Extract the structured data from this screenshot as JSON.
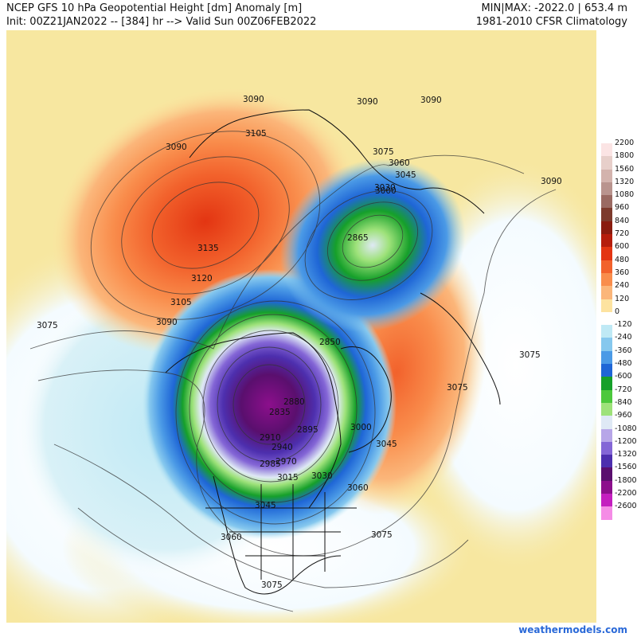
{
  "header": {
    "title": "NCEP GFS 10 hPa Geopotential Height [dm] Anomaly [m]",
    "init": "Init: 00Z21JAN2022 -- [384] hr --> Valid Sun 00Z06FEB2022",
    "minmax": "MIN|MAX: -2022.0 | 653.4 m",
    "climatology": "1981-2010 CFSR Climatology"
  },
  "legend": {
    "levels": [
      {
        "label": "2200",
        "color": "#fbe4e4"
      },
      {
        "label": "1800",
        "color": "#e7cfca"
      },
      {
        "label": "1560",
        "color": "#d3b3ad"
      },
      {
        "label": "1320",
        "color": "#b9948e"
      },
      {
        "label": "1080",
        "color": "#9a6a62"
      },
      {
        "label": "960",
        "color": "#7d3a2c"
      },
      {
        "label": "840",
        "color": "#8a1c0f"
      },
      {
        "label": "720",
        "color": "#b51d0c"
      },
      {
        "label": "600",
        "color": "#e33512"
      },
      {
        "label": "480",
        "color": "#f2622c"
      },
      {
        "label": "360",
        "color": "#f98d4c"
      },
      {
        "label": "240",
        "color": "#fbb67a"
      },
      {
        "label": "120",
        "color": "#fde3a0"
      },
      {
        "label": "0",
        "color": "#ffffff"
      },
      {
        "label": "-120",
        "color": "#bfe9f5"
      },
      {
        "label": "-240",
        "color": "#86c8ee"
      },
      {
        "label": "-360",
        "color": "#4b9ae6"
      },
      {
        "label": "-480",
        "color": "#1f66d6"
      },
      {
        "label": "-600",
        "color": "#16a02a"
      },
      {
        "label": "-720",
        "color": "#4cc83c"
      },
      {
        "label": "-840",
        "color": "#9ee27a"
      },
      {
        "label": "-960",
        "color": "#dfe9f5"
      },
      {
        "label": "-1080",
        "color": "#b7a6e8"
      },
      {
        "label": "-1200",
        "color": "#8466d6"
      },
      {
        "label": "-1320",
        "color": "#4d2fae"
      },
      {
        "label": "-1560",
        "color": "#5a0f6e"
      },
      {
        "label": "-1800",
        "color": "#8c0f8c"
      },
      {
        "label": "-2200",
        "color": "#c41fbf"
      },
      {
        "label": "-2600",
        "color": "#f58ce6"
      }
    ]
  },
  "contour_labels": [
    "3090",
    "3105",
    "3135",
    "3120",
    "3105",
    "3090",
    "3075",
    "3090",
    "3090",
    "3090",
    "3075",
    "3060",
    "3045",
    "3030",
    "3000",
    "2865",
    "2850",
    "2835",
    "2880",
    "2895",
    "2910",
    "2940",
    "2970",
    "2985",
    "3015",
    "3030",
    "3045",
    "3060",
    "3000",
    "3045",
    "3060",
    "3075",
    "3075",
    "3075",
    "3075",
    "3090"
  ],
  "credit": "weathermodels.com",
  "colors": {
    "low_center": "#5a0f6e",
    "high_center": "#e33512",
    "contour_line": "#333333"
  }
}
